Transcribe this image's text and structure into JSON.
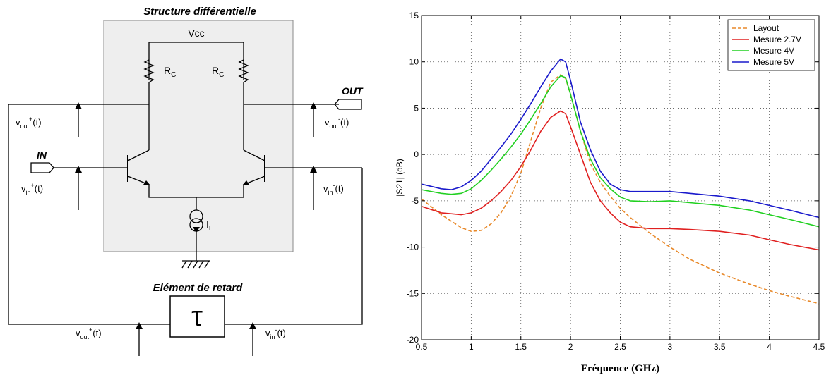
{
  "diagram": {
    "title": "Structure différentielle",
    "vcc": "Vcc",
    "rc_main": "R",
    "rc_sub": "C",
    "ie_main": "I",
    "ie_sub": "E",
    "in_label": "IN",
    "out_label": "OUT",
    "delay_title": "Elément de retard",
    "tau": "τ",
    "v_main": "v",
    "out_sub": "out",
    "in_sub": "in",
    "sup_plus": "+",
    "sup_minus": "-",
    "t_suffix": "(t)"
  },
  "chart_data": {
    "type": "line",
    "xlabel": "Fréquence (GHz)",
    "ylabel": "|S21| (dB)",
    "xlim": [
      0.5,
      4.5
    ],
    "ylim": [
      -20,
      15
    ],
    "xticks": [
      "0.5",
      "1",
      "1.5",
      "2",
      "2.5",
      "3",
      "3.5",
      "4",
      "4.5"
    ],
    "yticks": [
      "15",
      "10",
      "5",
      "0",
      "-5",
      "-10",
      "-15",
      "-20"
    ],
    "grid": true,
    "legend_position": "top-right",
    "series": [
      {
        "name": "Layout",
        "color": "#e8892a",
        "dash": true,
        "x": [
          0.5,
          0.7,
          0.9,
          1.0,
          1.1,
          1.2,
          1.3,
          1.4,
          1.5,
          1.6,
          1.7,
          1.8,
          1.9,
          1.95,
          2.0,
          2.1,
          2.2,
          2.3,
          2.4,
          2.5,
          2.6,
          2.8,
          3.0,
          3.2,
          3.5,
          3.8,
          4.0,
          4.2,
          4.5
        ],
        "y": [
          -4.8,
          -6.5,
          -7.9,
          -8.3,
          -8.2,
          -7.5,
          -6.3,
          -4.5,
          -2.0,
          1.5,
          5.0,
          7.8,
          8.6,
          8.2,
          6.5,
          2.5,
          -1.0,
          -3.0,
          -4.5,
          -5.8,
          -6.8,
          -8.5,
          -10.0,
          -11.3,
          -12.8,
          -14.0,
          -14.7,
          -15.3,
          -16.1
        ]
      },
      {
        "name": "Mesure 2.7V",
        "color": "#e02020",
        "dash": false,
        "x": [
          0.5,
          0.7,
          0.9,
          1.0,
          1.1,
          1.2,
          1.3,
          1.4,
          1.5,
          1.6,
          1.7,
          1.8,
          1.9,
          1.95,
          2.0,
          2.1,
          2.2,
          2.3,
          2.4,
          2.5,
          2.6,
          2.8,
          3.0,
          3.2,
          3.5,
          3.8,
          4.0,
          4.2,
          4.5
        ],
        "y": [
          -5.6,
          -6.3,
          -6.5,
          -6.3,
          -5.8,
          -5.0,
          -4.0,
          -2.8,
          -1.3,
          0.5,
          2.5,
          4.0,
          4.7,
          4.4,
          3.0,
          0.0,
          -3.0,
          -5.0,
          -6.3,
          -7.3,
          -7.8,
          -8.0,
          -8.0,
          -8.1,
          -8.3,
          -8.7,
          -9.2,
          -9.7,
          -10.3
        ]
      },
      {
        "name": "Mesure 4V",
        "color": "#20d020",
        "dash": false,
        "x": [
          0.5,
          0.7,
          0.8,
          0.9,
          1.0,
          1.1,
          1.2,
          1.3,
          1.4,
          1.5,
          1.6,
          1.7,
          1.8,
          1.9,
          1.95,
          2.0,
          2.1,
          2.2,
          2.3,
          2.4,
          2.5,
          2.6,
          2.8,
          3.0,
          3.2,
          3.5,
          3.8,
          4.0,
          4.2,
          4.5
        ],
        "y": [
          -3.8,
          -4.2,
          -4.3,
          -4.2,
          -3.7,
          -2.8,
          -1.7,
          -0.5,
          0.8,
          2.2,
          3.8,
          5.5,
          7.3,
          8.5,
          8.3,
          6.5,
          2.5,
          -0.5,
          -2.5,
          -3.7,
          -4.6,
          -5.0,
          -5.1,
          -5.0,
          -5.2,
          -5.5,
          -6.0,
          -6.5,
          -7.0,
          -7.8
        ]
      },
      {
        "name": "Mesure 5V",
        "color": "#1a1acc",
        "dash": false,
        "x": [
          0.5,
          0.7,
          0.8,
          0.9,
          1.0,
          1.1,
          1.2,
          1.3,
          1.4,
          1.5,
          1.6,
          1.7,
          1.8,
          1.9,
          1.95,
          2.0,
          2.1,
          2.2,
          2.3,
          2.4,
          2.5,
          2.6,
          2.8,
          3.0,
          3.2,
          3.5,
          3.8,
          4.0,
          4.2,
          4.5
        ],
        "y": [
          -3.2,
          -3.7,
          -3.8,
          -3.5,
          -2.8,
          -1.8,
          -0.5,
          0.8,
          2.2,
          3.8,
          5.5,
          7.3,
          9.0,
          10.3,
          10.0,
          8.0,
          3.5,
          0.5,
          -1.8,
          -3.2,
          -3.8,
          -4.0,
          -4.0,
          -4.0,
          -4.2,
          -4.5,
          -5.0,
          -5.5,
          -6.0,
          -6.8
        ]
      }
    ]
  }
}
